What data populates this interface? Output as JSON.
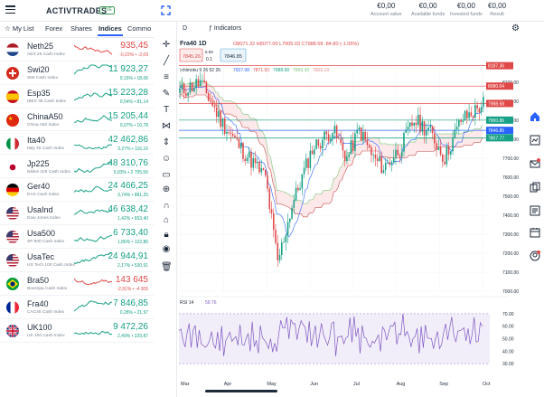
{
  "header": {
    "logo": "ACTIVTRADES",
    "live_badge": "LIVE",
    "metrics": [
      {
        "value": "€0,00",
        "label": "Account value"
      },
      {
        "value": "€0,00",
        "label": "Available funds"
      },
      {
        "value": "€0,00",
        "label": "Invested funds"
      },
      {
        "value": "€0,00",
        "label": "Result"
      }
    ]
  },
  "tabs": [
    "My List",
    "Forex",
    "Shares",
    "Indices",
    "Commo"
  ],
  "active_tab": "Indices",
  "watchlist": [
    {
      "name": "Neth25",
      "sub": "AEX 25 Cash Index",
      "price": "935,45",
      "change": "-0,22% • -2,09",
      "dir": "down",
      "flag": "nl"
    },
    {
      "name": "Swi20",
      "sub": "SMI Cash Index",
      "price": "11 923,27",
      "change": "0,15% • 18,06",
      "dir": "up",
      "flag": "ch"
    },
    {
      "name": "Esp35",
      "sub": "IBEX 35 Cash Index",
      "price": "15 223,28",
      "change": "0,54% • 81,14",
      "dir": "up",
      "flag": "es"
    },
    {
      "name": "ChinaA50",
      "sub": "China A50 Index",
      "price": "15 205,44",
      "change": "0,07% • 10,78",
      "dir": "up",
      "flag": "cn"
    },
    {
      "name": "Ita40",
      "sub": "Italy 40 Cash Index",
      "price": "42 462,86",
      "change": "0,27% • 116,16",
      "dir": "up",
      "flag": "it"
    },
    {
      "name": "Jp225",
      "sub": "Nikkei 225 Cash Index",
      "price": "48 310,76",
      "change": "5,93% • 2 705,56",
      "dir": "up",
      "flag": "jp"
    },
    {
      "name": "Ger40",
      "sub": "DAX Cash Index",
      "price": "24 466,25",
      "change": "3,74% • 881,25",
      "dir": "up",
      "flag": "de"
    },
    {
      "name": "UsaInd",
      "sub": "Dow Jones Index",
      "price": "46 638,42",
      "change": "1,42% • 653,40",
      "dir": "up",
      "flag": "us"
    },
    {
      "name": "Usa500",
      "sub": "SP 500 Cash Index",
      "price": "6 733,40",
      "change": "1,86% • 122,86",
      "dir": "up",
      "flag": "us"
    },
    {
      "name": "UsaTec",
      "sub": "US Tech 100 Cash Index",
      "price": "24 944,91",
      "change": "2,17% • 530,91",
      "dir": "up",
      "flag": "us"
    },
    {
      "name": "Bra50",
      "sub": "Bovespa Cash Index",
      "price": "143 645",
      "change": "-2,91% • -4 305",
      "dir": "down",
      "flag": "br"
    },
    {
      "name": "Fra40",
      "sub": "CAC40 Cash Index",
      "price": "7 846,85",
      "change": "0,28% • 21,97",
      "dir": "up",
      "flag": "fr"
    },
    {
      "name": "UK100",
      "sub": "UK 100 Cash Index",
      "price": "9 472,26",
      "change": "2,49% • 229,87",
      "dir": "up",
      "flag": "gb"
    }
  ],
  "chart": {
    "timeframe_label": "D",
    "indicators_label": "Indicators",
    "symbol": "Fra40",
    "interval": "1D",
    "ohlc": "O8071.32 H8077.00 L7905.03 C7988.58 -84.80 (-1.05%)",
    "sell": "7845.26",
    "spread": "5.59",
    "lot": "0.1",
    "buy": "7846.85",
    "ichimoku_label": "Ichimoku 9 26 52 26",
    "ichimoku_values": [
      "7927.08",
      "7871.50",
      "7988.58",
      "7899.39",
      "7809.19"
    ],
    "rsi_label": "RSI 14",
    "rsi_value": "59.76",
    "price_axis": [
      "8100.00",
      "8000.00",
      "7900.00",
      "7800.00",
      "7700.00",
      "7600.00",
      "7500.00",
      "7400.00",
      "7300.00",
      "7200.00",
      "7100.00",
      "7000.00"
    ],
    "price_tags": [
      {
        "value": "8187.36",
        "color": "#e04848"
      },
      {
        "value": "8080.04",
        "color": "#e04848"
      },
      {
        "value": "7988.58",
        "color": "#e04848"
      },
      {
        "value": "7900.86",
        "color": "#16a085"
      },
      {
        "value": "7846.85",
        "color": "#2962ff"
      },
      {
        "value": "7807.77",
        "color": "#16a085"
      }
    ],
    "rsi_axis": [
      "70.00",
      "60.00",
      "50.00",
      "40.00",
      "30.00"
    ],
    "months": [
      "Mar",
      "Apr",
      "May",
      "Jun",
      "Jul",
      "Aug",
      "Sep",
      "Oct"
    ]
  },
  "colors": {
    "accent": "#2962ff",
    "up": "#16a085",
    "down": "#e04848"
  }
}
